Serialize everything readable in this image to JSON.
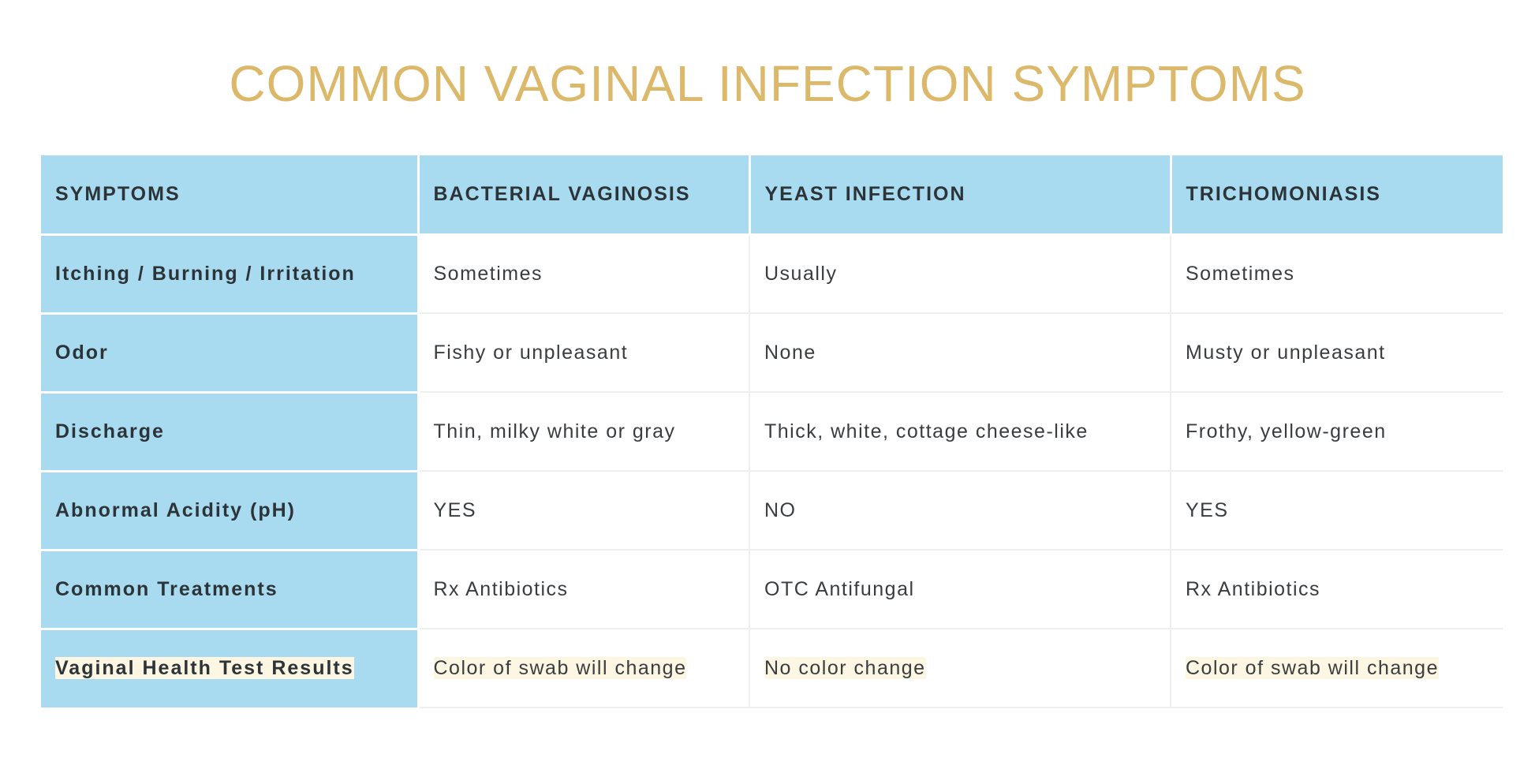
{
  "title": "COMMON VAGINAL INFECTION SYMPTOMS",
  "colors": {
    "title": "#dcb96a",
    "header_bg": "#a8daf0",
    "highlight": "#fdf6e3"
  },
  "table": {
    "headers": [
      "SYMPTOMS",
      "BACTERIAL VAGINOSIS",
      "YEAST INFECTION",
      "TRICHOMONIASIS"
    ],
    "rows": [
      {
        "label": "Itching / Burning / Irritation",
        "cells": [
          "Sometimes",
          "Usually",
          "Sometimes"
        ]
      },
      {
        "label": "Odor",
        "cells": [
          "Fishy or unpleasant",
          "None",
          "Musty or unpleasant"
        ]
      },
      {
        "label": "Discharge",
        "cells": [
          "Thin, milky white or gray",
          "Thick, white, cottage cheese-like",
          "Frothy, yellow-green"
        ]
      },
      {
        "label": "Abnormal Acidity (pH)",
        "cells": [
          "YES",
          "NO",
          "YES"
        ]
      },
      {
        "label": "Common Treatments",
        "cells": [
          "Rx Antibiotics",
          "OTC Antifungal",
          "Rx Antibiotics"
        ]
      },
      {
        "label": "Vaginal Health Test Results",
        "cells": [
          "Color of swab will change",
          "No color change",
          "Color of swab will change"
        ],
        "highlighted": true
      }
    ]
  }
}
